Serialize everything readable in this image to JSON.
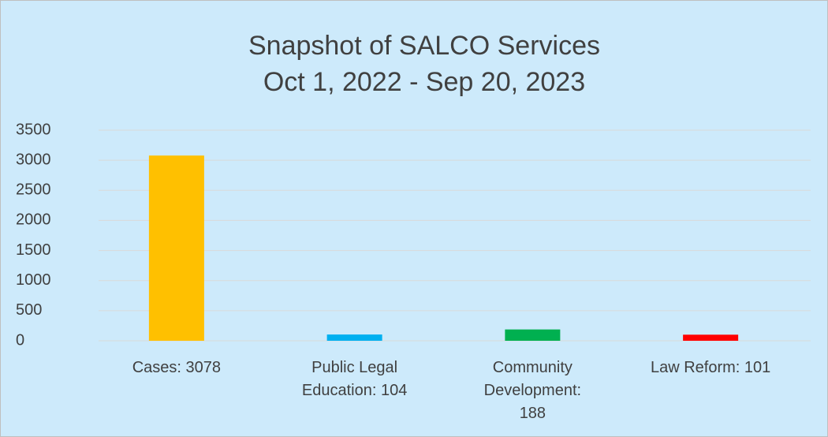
{
  "chart_data": {
    "type": "bar",
    "title": "Snapshot of SALCO Services",
    "subtitle": "Oct 1, 2022 - Sep 20, 2023",
    "categories": [
      "Cases: 3078",
      "Public Legal Education: 104",
      "Community Development: 188",
      "Law Reform: 101"
    ],
    "values": [
      3078,
      104,
      188,
      101
    ],
    "colors": [
      "#ffc000",
      "#00b0f0",
      "#00b050",
      "#ff0000"
    ],
    "ylim": [
      0,
      3500
    ],
    "yticks": [
      0,
      500,
      1000,
      1500,
      2000,
      2500,
      3000,
      3500
    ],
    "grid": true
  }
}
